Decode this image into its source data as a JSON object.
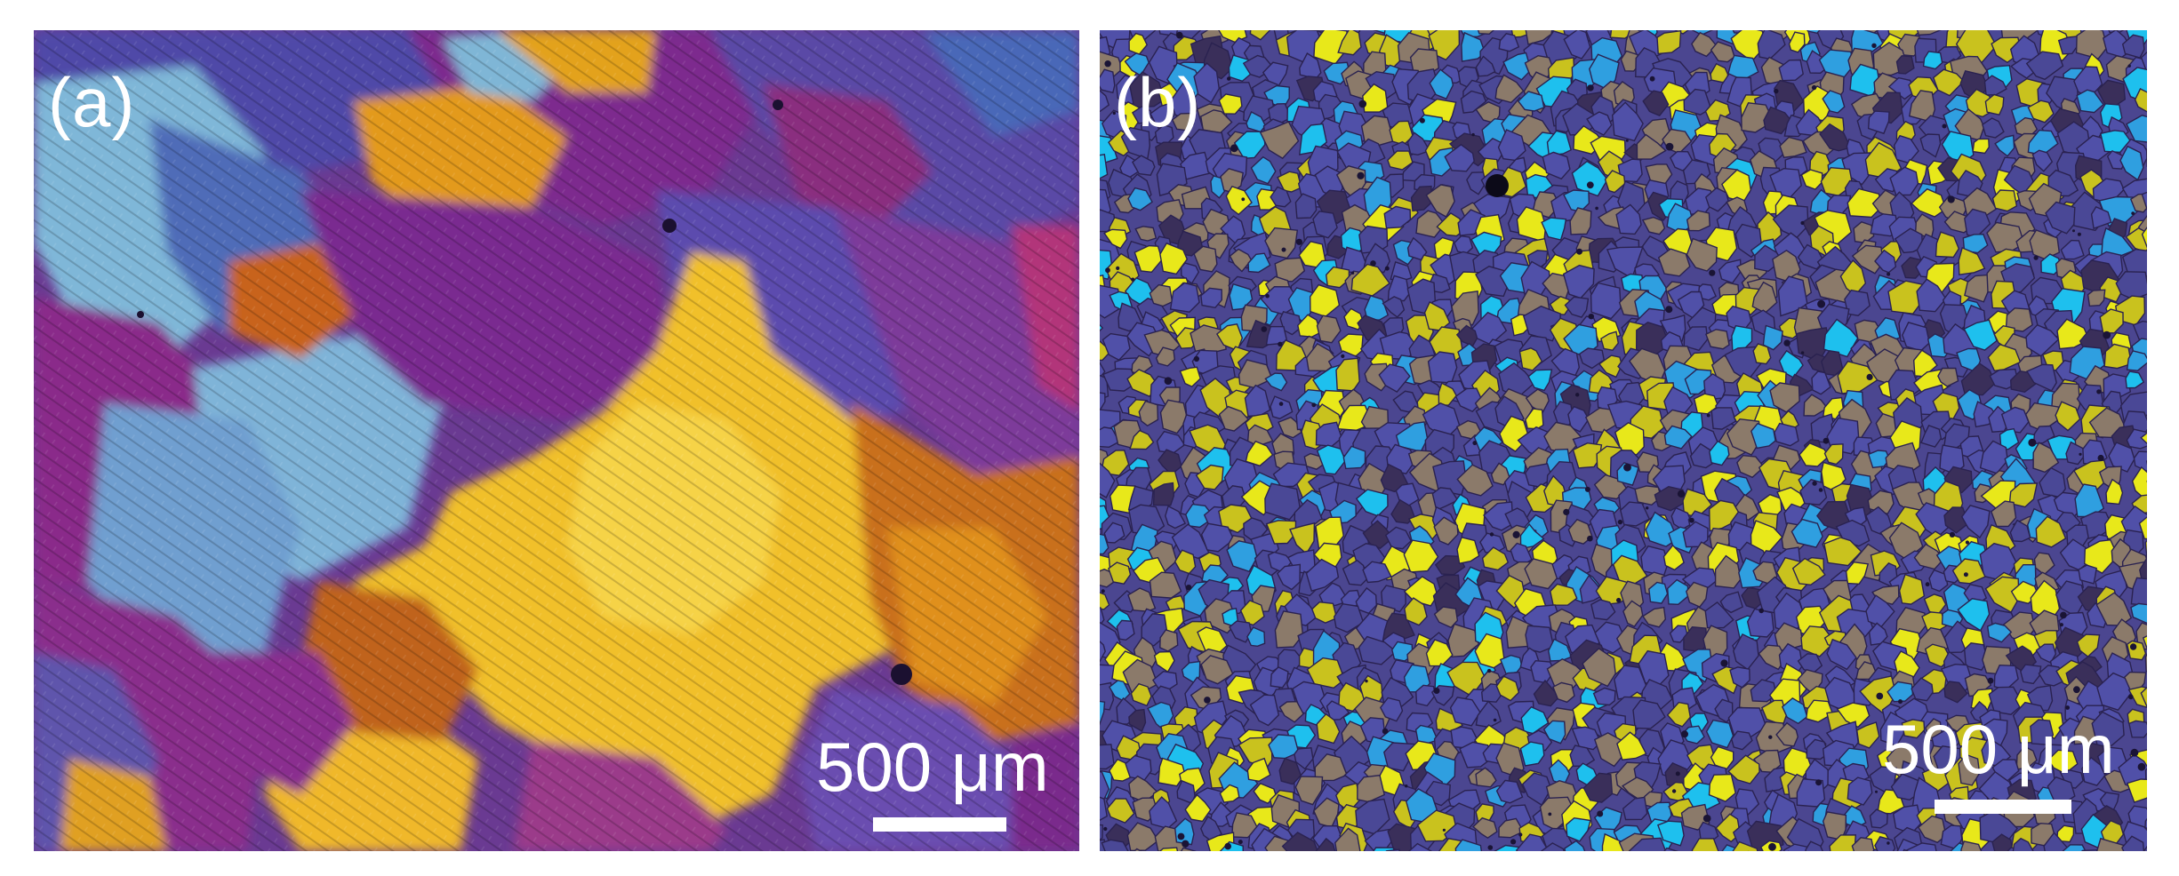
{
  "figure": {
    "panels": [
      {
        "label": "(a)",
        "scale_bar_text": "500 μm",
        "colors": [
          "#7a2f8c",
          "#4b3f9e",
          "#3f5aa8",
          "#7fb6d6",
          "#e3a21a",
          "#f0c12b",
          "#c76a1e",
          "#9a3a8a"
        ]
      },
      {
        "label": "(b)",
        "scale_bar_text": "500 μm",
        "colors": [
          "#5050a8",
          "#4a4896",
          "#8b7a6a",
          "#c9c21e",
          "#e8e81a",
          "#2f9fe0",
          "#1ec0ee",
          "#3a2f5a"
        ]
      }
    ]
  }
}
